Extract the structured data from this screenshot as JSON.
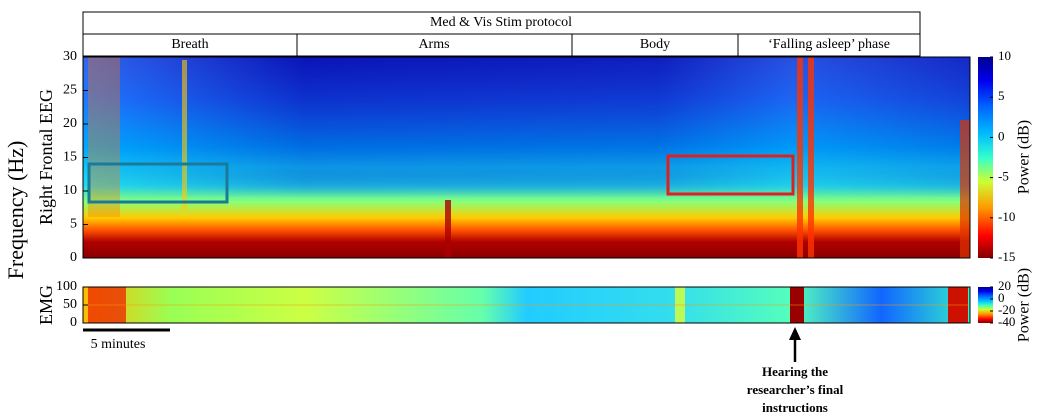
{
  "chart_data": [
    {
      "type": "heatmap",
      "protocol": "Med & Vis Stim protocol",
      "phases": [
        "Breath",
        "Arms",
        "Body",
        "‘Falling asleep’ phase"
      ],
      "shared_ylabel": "Frequency (Hz)",
      "ylabel": "Right Frontal EEG",
      "ylim": [
        0,
        30
      ],
      "yticks": [
        0,
        5,
        10,
        15,
        20,
        25,
        30
      ],
      "colorbar": {
        "label": "Power (dB)",
        "lim": [
          -15,
          10
        ],
        "ticks": [
          -15,
          -10,
          -5,
          0,
          5,
          10
        ]
      },
      "scale_bar": "5 minutes",
      "annotation": [
        "Hearing the",
        "researcher’s final",
        "instructions"
      ]
    },
    {
      "type": "heatmap",
      "ylabel": "EMG",
      "ylim": [
        0,
        100
      ],
      "yticks": [
        0,
        50,
        100
      ],
      "colorbar": {
        "label": "Power (dB)",
        "lim": [
          -40,
          20
        ],
        "ticks": [
          -40,
          -20,
          0,
          20
        ]
      }
    }
  ]
}
